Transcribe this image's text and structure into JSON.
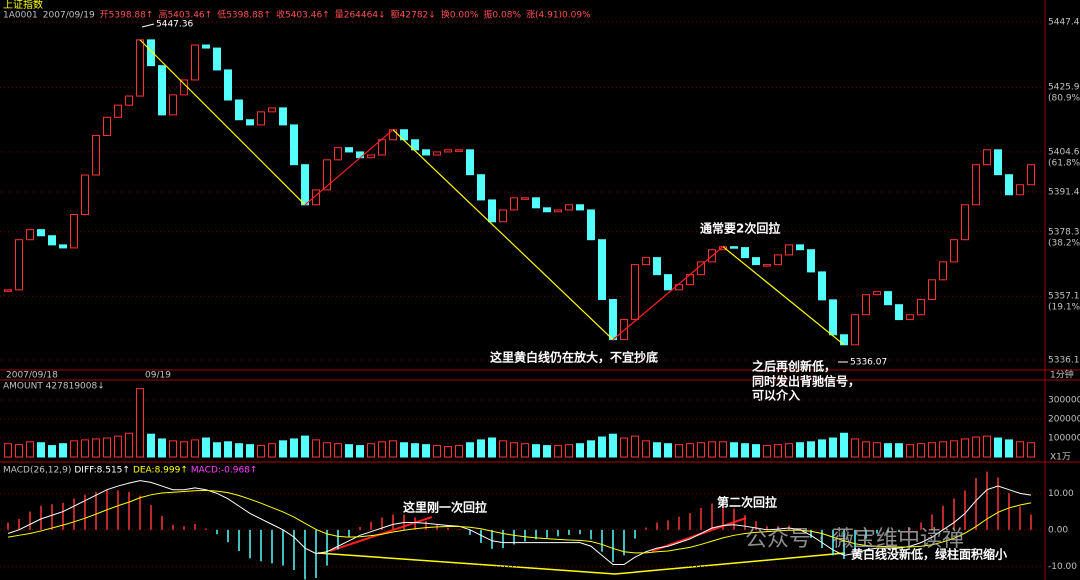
{
  "header": {
    "title": "上证指数",
    "info": [
      "1A0001",
      "2007/09/19",
      "开5398.88↑",
      "高5403.46↑",
      "低5398.88↑",
      "收5403.46↑",
      "量264464↓",
      "额42782↓",
      "换0.00%",
      "振0.08%",
      "涨(4.91)0.09%"
    ]
  },
  "chart_data": {
    "type": "candlestick",
    "close": [
      5359.2,
      5375.7,
      5379,
      5377,
      5374,
      5373,
      5384,
      5397,
      5410,
      5416,
      5420,
      5423,
      5441.5,
      5433,
      5416.8,
      5423.4,
      5428.3,
      5439.8,
      5438.8,
      5431.6,
      5421.7,
      5415.2,
      5413.5,
      5417.8,
      5419.1,
      5413.5,
      5400.4,
      5387.2,
      5392.1,
      5402,
      5406,
      5404.6,
      5402.7,
      5403.6,
      5408.6,
      5411.9,
      5408.6,
      5405.3,
      5403.6,
      5404.6,
      5405.3,
      5405.3,
      5397.1,
      5388.8,
      5381.6,
      5385.5,
      5389.5,
      5389.5,
      5386.2,
      5384.9,
      5385.5,
      5387.2,
      5385.5,
      5375.7,
      5356,
      5342.8,
      5349.4,
      5367.5,
      5369.8,
      5364.2,
      5359.2,
      5360.9,
      5364.2,
      5368.4,
      5372.4,
      5373.4,
      5373.1,
      5369.8,
      5367.5,
      5367.5,
      5370.7,
      5374,
      5372.4,
      5365.1,
      5355.9,
      5344.4,
      5341.1,
      5351,
      5357.6,
      5358.6,
      5354.3,
      5349.4,
      5351,
      5356,
      5362.5,
      5368.4,
      5375.7,
      5387.2,
      5400.4,
      5405.3,
      5397.1,
      5390.5,
      5393.8,
      5400.4
    ],
    "up_color": "#ff3232",
    "down_color": "#54ffff",
    "ylim": [
      5332.8,
      5448.7
    ],
    "yticks": [
      5336.1,
      5357.1,
      5378.3,
      5391.4,
      5404.6,
      5425.9,
      5447.4
    ],
    "ratio_labels": [
      null,
      "(19.1%)",
      "(38.2%)",
      null,
      "(61.8%)",
      "(80.9%)",
      null
    ],
    "high_label": "5447.36",
    "low_label": "5336.07",
    "dates": [
      "2007/09/18",
      "09/19"
    ],
    "period": "1分钟",
    "annotations": [
      "这里黄白线仍在放大，不宜抄底",
      "通常要2次回拉",
      "之后再创新低，",
      "同时发出背驰信号，",
      "可以介入"
    ],
    "volume": {
      "title": "AMOUNT 427819008↓",
      "unit": "X1万",
      "values": [
        70000,
        65000,
        80000,
        75000,
        60000,
        70000,
        85000,
        90000,
        95000,
        100000,
        110000,
        125000,
        360000,
        120000,
        95000,
        85000,
        80000,
        90000,
        100000,
        75000,
        80000,
        70000,
        65000,
        60000,
        70000,
        85000,
        95000,
        110000,
        90000,
        75000,
        70000,
        65000,
        60000,
        70000,
        80000,
        85000,
        75000,
        70000,
        65000,
        60000,
        55000,
        60000,
        75000,
        90000,
        100000,
        85000,
        75000,
        70000,
        65000,
        60000,
        60000,
        65000,
        70000,
        85000,
        105000,
        120000,
        100000,
        110000,
        85000,
        75000,
        70000,
        65000,
        70000,
        75000,
        80000,
        80000,
        75000,
        70000,
        65000,
        60000,
        65000,
        70000,
        75000,
        80000,
        90000,
        100000,
        125000,
        95000,
        80000,
        75000,
        70000,
        70000,
        65000,
        70000,
        75000,
        80000,
        85000,
        95000,
        105000,
        110000,
        100000,
        90000,
        80000,
        75000
      ],
      "ylim": [
        0,
        400000
      ],
      "yticks": [
        100000,
        200000,
        300000
      ]
    },
    "macd": {
      "title": [
        "MACD(26,12,9)",
        "DIFF:8.515↑",
        "DEA:8.999↑",
        "MACD:-0.968↑"
      ],
      "dif": [
        -1,
        0,
        1.5,
        3,
        4,
        5,
        6.5,
        8,
        9.5,
        11,
        12,
        12.8,
        13.5,
        13,
        12,
        11,
        11,
        11.5,
        11,
        10,
        8.5,
        6.5,
        4.5,
        3,
        1.5,
        0,
        -2,
        -5,
        -6.5,
        -6,
        -4.5,
        -3,
        -1.5,
        -0.5,
        0.5,
        1.5,
        2,
        2,
        1.8,
        1.5,
        1.2,
        1,
        0,
        -1.5,
        -3,
        -3.5,
        -3.5,
        -3.5,
        -3.5,
        -3.5,
        -3.5,
        -3.5,
        -3.5,
        -4.5,
        -7,
        -9.5,
        -9.5,
        -7.5,
        -6,
        -5,
        -4.5,
        -3.5,
        -2.5,
        -1,
        0.5,
        1.2,
        1.4,
        1,
        0.5,
        0,
        0.2,
        0.5,
        0,
        -1.5,
        -3.5,
        -5.5,
        -7,
        -6.5,
        -5.5,
        -5,
        -5,
        -5,
        -4.5,
        -3.5,
        -2,
        0,
        2,
        4.5,
        8,
        11,
        12,
        11,
        10,
        9.5
      ],
      "dea": [
        -2,
        -1.5,
        -1,
        -0.3,
        0.5,
        1.3,
        2.2,
        3.2,
        4.3,
        5.5,
        6.6,
        7.6,
        8.8,
        9.6,
        10.1,
        10.3,
        10.5,
        10.7,
        10.8,
        10.6,
        10.2,
        9.4,
        8.4,
        7.3,
        6.1,
        4.9,
        3.5,
        1.8,
        0.1,
        -1.1,
        -1.8,
        -2,
        -1.9,
        -1.6,
        -1.2,
        -0.6,
        -0.1,
        0.3,
        0.6,
        0.8,
        0.9,
        0.9,
        0.7,
        0.3,
        -0.4,
        -1,
        -1.5,
        -1.9,
        -2.2,
        -2.4,
        -2.6,
        -2.8,
        -2.9,
        -3.2,
        -4,
        -5.1,
        -6,
        -6.3,
        -6.3,
        -6,
        -5.8,
        -5.3,
        -4.8,
        -4,
        -3.1,
        -2.2,
        -1.5,
        -1,
        -0.7,
        -0.5,
        -0.3,
        -0.1,
        -0.1,
        -0.4,
        -1,
        -2,
        -3,
        -3.8,
        -4.3,
        -4.5,
        -4.6,
        -4.7,
        -4.7,
        -4.5,
        -4.1,
        -3.3,
        -2.3,
        -0.9,
        0.9,
        3,
        4.8,
        6,
        6.8,
        7.4
      ],
      "hist": [
        2,
        3,
        5,
        6.6,
        7,
        7.4,
        8.6,
        9.6,
        10.4,
        11,
        10.8,
        10.4,
        9.4,
        6.8,
        3.8,
        1.4,
        1,
        1.6,
        0.4,
        -1.2,
        -3.4,
        -5.8,
        -7.8,
        -8.6,
        -9.2,
        -9.8,
        -11,
        -13.6,
        -13.2,
        -9.8,
        -5.4,
        -2,
        0.8,
        2.2,
        3.4,
        4.2,
        4.2,
        3.4,
        2.4,
        1.4,
        0.6,
        0.2,
        -1.4,
        -3.6,
        -5.2,
        -5,
        -4,
        -3.2,
        -2.6,
        -2.2,
        -1.8,
        -1.4,
        -1.2,
        -2.6,
        -6,
        -8.8,
        -7,
        -2.4,
        0.6,
        2,
        2.6,
        3.6,
        4.6,
        6,
        7.2,
        6.8,
        5.8,
        4,
        2.4,
        1,
        1,
        1.2,
        0.2,
        -2.2,
        -5,
        -7,
        -8,
        -5.4,
        -2.4,
        -1,
        -0.8,
        -0.6,
        0.4,
        2,
        4.2,
        6.6,
        8.6,
        10.8,
        14.2,
        16,
        14.4,
        10,
        6.4,
        4.2
      ],
      "dif_color": "#ffffff",
      "dea_color": "#ffff00",
      "ylim": [
        -13.2,
        16.4
      ],
      "yticks": [
        {
          "value": -10,
          "label": "-10.00"
        },
        {
          "value": 0,
          "label": "0.00"
        },
        {
          "value": 10,
          "label": "10.00"
        }
      ],
      "annotations": [
        "这里刚一次回拉",
        "第二次回拉",
        "黄白线没新低，绿柱面积缩小"
      ]
    },
    "watermark": "公众号 · 薇宝维中读禅"
  }
}
